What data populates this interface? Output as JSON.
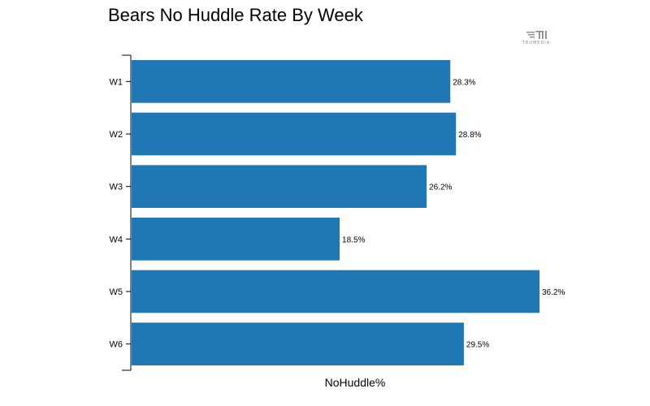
{
  "chart_data": {
    "type": "bar",
    "orientation": "horizontal",
    "title": "Bears No Huddle Rate By Week",
    "xlabel": "NoHuddle%",
    "ylabel": "",
    "categories": [
      "W1",
      "W2",
      "W3",
      "W4",
      "W5",
      "W6"
    ],
    "values": [
      28.3,
      28.8,
      26.2,
      18.5,
      36.2,
      29.5
    ],
    "value_labels": [
      "28.3%",
      "28.8%",
      "26.2%",
      "18.5%",
      "36.2%",
      "29.5%"
    ],
    "xlim": [
      0,
      36.2
    ],
    "bar_color": "#1f77b4",
    "grid": false
  },
  "logo": {
    "text": "TRUMEDIA",
    "icon": "trumedia-logo-icon"
  }
}
